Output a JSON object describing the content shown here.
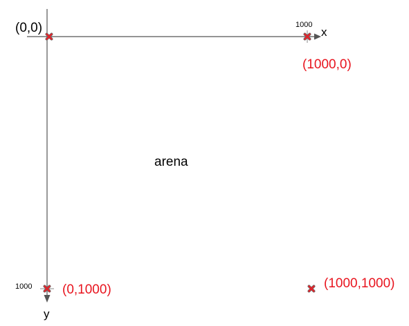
{
  "colors": {
    "axis": "#555555",
    "text": "#000000",
    "point_label": "#e8141e",
    "marker_fill": "#e3242b",
    "marker_stroke": "#6b6b6b"
  },
  "diagram": {
    "origin_label": "(0,0)",
    "x_axis_label": "x",
    "y_axis_label": "y",
    "x_tick_label": "1000",
    "y_tick_label": "1000",
    "center_label": "arena",
    "points": [
      {
        "label": "(1000,0)"
      },
      {
        "label": "(0,1000)"
      },
      {
        "label": "(1000,1000)"
      }
    ]
  },
  "icons": {
    "marker": "x-mark-icon",
    "arrow": "arrowhead-icon"
  }
}
